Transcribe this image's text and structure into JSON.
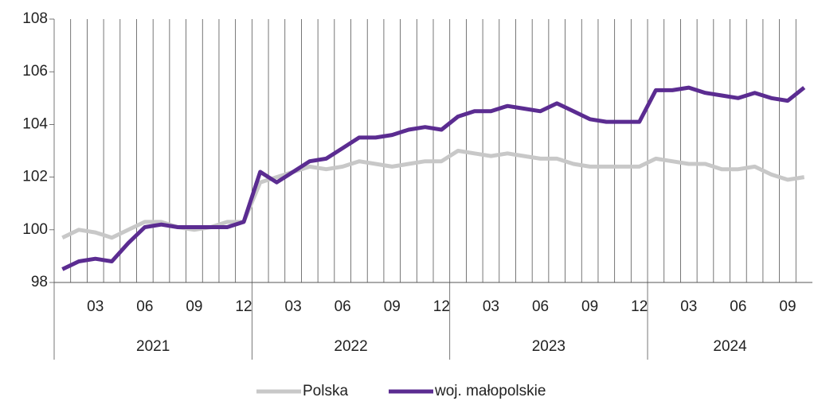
{
  "chart_data": {
    "type": "line",
    "categories": [
      null,
      null,
      "03",
      null,
      null,
      "06",
      null,
      null,
      "09",
      null,
      null,
      "12",
      null,
      null,
      "03",
      null,
      null,
      "06",
      null,
      null,
      "09",
      null,
      null,
      "12",
      null,
      null,
      "03",
      null,
      null,
      "06",
      null,
      null,
      "09",
      null,
      null,
      "12",
      null,
      null,
      "03",
      null,
      null,
      "06",
      null,
      null,
      "09",
      null
    ],
    "groups": [
      "2021",
      "2022",
      "2023",
      "2024"
    ],
    "series": [
      {
        "name": "Polska",
        "color": "#c8c8c8",
        "values": [
          99.7,
          100.0,
          99.9,
          99.7,
          100.0,
          100.3,
          100.3,
          100.1,
          100.0,
          100.1,
          100.3,
          100.3,
          101.8,
          102.0,
          102.2,
          102.4,
          102.3,
          102.4,
          102.6,
          102.5,
          102.4,
          102.5,
          102.6,
          102.6,
          103.0,
          102.9,
          102.8,
          102.9,
          102.8,
          102.7,
          102.7,
          102.5,
          102.4,
          102.4,
          102.4,
          102.4,
          102.7,
          102.6,
          102.5,
          102.5,
          102.3,
          102.3,
          102.4,
          102.1,
          101.9,
          102.0
        ]
      },
      {
        "name": "woj. małopolskie",
        "color": "#5b2c91",
        "values": [
          98.5,
          98.8,
          98.9,
          98.8,
          99.5,
          100.1,
          100.2,
          100.1,
          100.1,
          100.1,
          100.1,
          100.3,
          102.2,
          101.8,
          102.2,
          102.6,
          102.7,
          103.1,
          103.5,
          103.5,
          103.6,
          103.8,
          103.9,
          103.8,
          104.3,
          104.5,
          104.5,
          104.7,
          104.6,
          104.5,
          104.8,
          104.5,
          104.2,
          104.1,
          104.1,
          104.1,
          105.3,
          105.3,
          105.4,
          105.2,
          105.1,
          105.0,
          105.2,
          105.0,
          104.9,
          105.4
        ]
      }
    ],
    "ylim": [
      98,
      108
    ],
    "yticks": [
      98,
      100,
      102,
      104,
      106,
      108
    ],
    "grid": true,
    "legend": "bottom"
  }
}
